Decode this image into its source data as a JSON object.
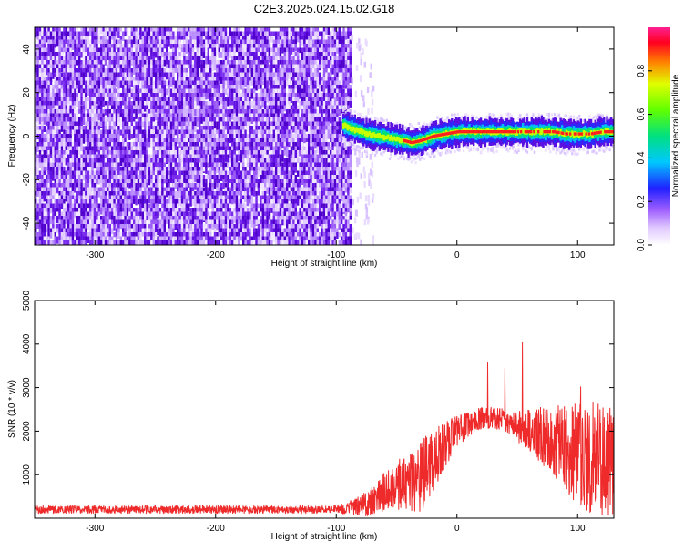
{
  "title": "C2E3.2025.024.15.02.G18",
  "chart_data": [
    {
      "type": "heatmap",
      "xlabel": "Height of straight line (km)",
      "ylabel": "Frequency (Hz)",
      "xlim": [
        -350,
        130
      ],
      "ylim": [
        -50,
        50
      ],
      "xticks": [
        -300,
        -200,
        -100,
        0,
        100
      ],
      "yticks": [
        -40,
        -20,
        0,
        20,
        40
      ],
      "colorbar": {
        "label": "Normalized spectral amplitude",
        "range": [
          0.0,
          1.0
        ],
        "ticks": [
          0.0,
          0.2,
          0.4,
          0.6,
          0.8
        ]
      },
      "noise_region_x": [
        -350,
        -88
      ],
      "signal_track": {
        "x": [
          -95,
          -85,
          -75,
          -65,
          -55,
          -45,
          -38,
          -30,
          -20,
          -10,
          0,
          10,
          20,
          30,
          40,
          50,
          60,
          70,
          80,
          90,
          100,
          110,
          120,
          130
        ],
        "freq": [
          5,
          3,
          1,
          0,
          -1,
          -2,
          -3,
          -2,
          0,
          1,
          2,
          2,
          2,
          2,
          2,
          2,
          2,
          2,
          2,
          1,
          1,
          1,
          2,
          2
        ]
      }
    },
    {
      "type": "line",
      "xlabel": "Height of straight line (km)",
      "ylabel": "SNR (10 * v/v)",
      "xlim": [
        -350,
        130
      ],
      "ylim": [
        0,
        5000
      ],
      "xticks": [
        -300,
        -200,
        -100,
        0,
        100
      ],
      "yticks": [
        1000,
        2000,
        3000,
        4000,
        5000
      ],
      "series_color": "#ee2a2a",
      "envelope": {
        "x": [
          -350,
          -100,
          -90,
          -80,
          -70,
          -60,
          -50,
          -40,
          -30,
          -20,
          -10,
          0,
          10,
          20,
          30,
          40,
          50,
          60,
          70,
          80,
          90,
          100,
          110,
          120,
          130
        ],
        "mean": [
          200,
          200,
          220,
          300,
          400,
          600,
          750,
          900,
          1000,
          1300,
          1700,
          2000,
          2150,
          2300,
          2300,
          2250,
          2100,
          2000,
          1900,
          1800,
          1600,
          1500,
          1400,
          1300,
          1300
        ],
        "spread": [
          90,
          90,
          150,
          250,
          350,
          450,
          550,
          700,
          900,
          700,
          550,
          350,
          280,
          250,
          250,
          260,
          350,
          500,
          650,
          800,
          1000,
          1200,
          1300,
          1300,
          1200
        ]
      }
    }
  ]
}
